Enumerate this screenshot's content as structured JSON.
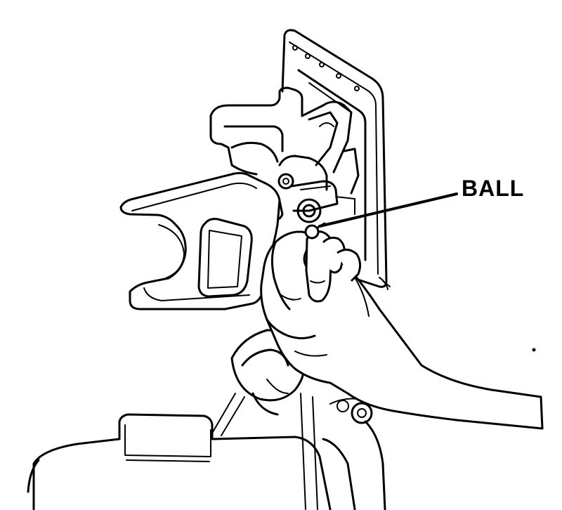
{
  "callout": {
    "label": "BALL"
  },
  "colors": {
    "ink": "#000000",
    "paper": "#ffffff"
  }
}
